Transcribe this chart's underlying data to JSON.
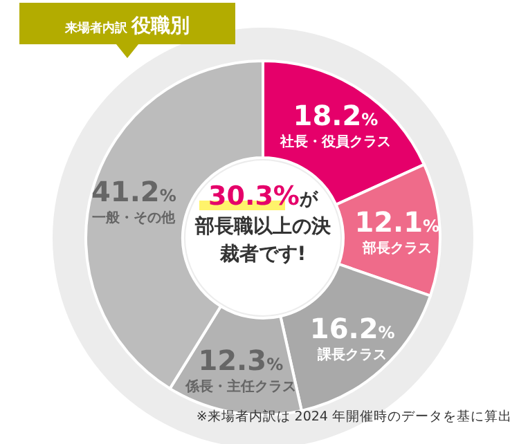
{
  "chart_data": {
    "type": "donut",
    "subtitle": "来場者内訳",
    "title": "役職別",
    "categories": [
      "社長・役員クラス",
      "部長クラス",
      "課長クラス",
      "係長・主任クラス",
      "一般・その他"
    ],
    "values": [
      18.2,
      12.1,
      16.2,
      12.3,
      41.2
    ],
    "colors": [
      "#e5006a",
      "#ef6b8a",
      "#a9a9a9",
      "#b3b3b3",
      "#bcbcbc"
    ],
    "value_labels": [
      "18.2%",
      "12.1%",
      "16.2%",
      "12.3%",
      "41.2%"
    ],
    "annotations": [
      "30.3%が部長職以上の決裁者です!",
      "※来場者内訳は 2024 年開催時のデータを基に算出"
    ]
  }
}
